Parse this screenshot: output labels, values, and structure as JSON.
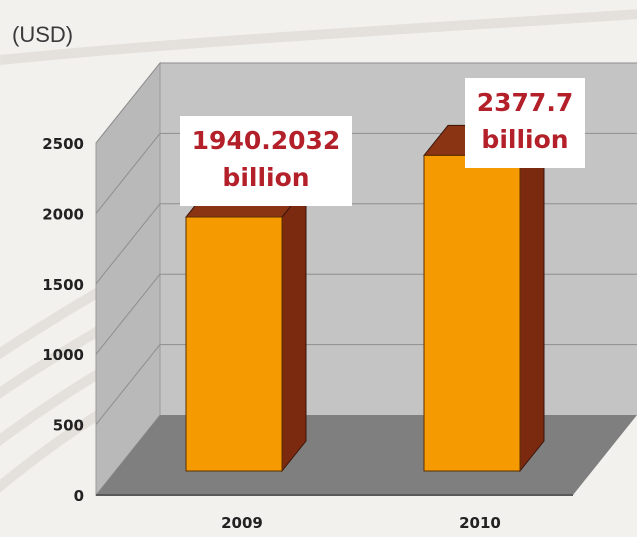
{
  "chart_data": {
    "type": "bar",
    "unit_label": "(USD)",
    "categories": [
      "2009",
      "2010"
    ],
    "values": [
      1940.2032,
      2377.7
    ],
    "data_labels": [
      [
        "1940.2032",
        "billion"
      ],
      [
        "2377.7",
        "billion"
      ]
    ],
    "yticks": [
      "0",
      "500",
      "1000",
      "1500",
      "2000",
      "2500"
    ],
    "ylim": [
      0,
      2500
    ],
    "grid": true,
    "colors": {
      "bar_front": "#f59a00",
      "bar_side": "#7b2a10",
      "bar_top": "#8a3414",
      "back_wall": "#c4c4c4",
      "side_wall": "#b9b9b9",
      "floor": "#7f7f7f",
      "label_text": "#b3202a"
    }
  }
}
